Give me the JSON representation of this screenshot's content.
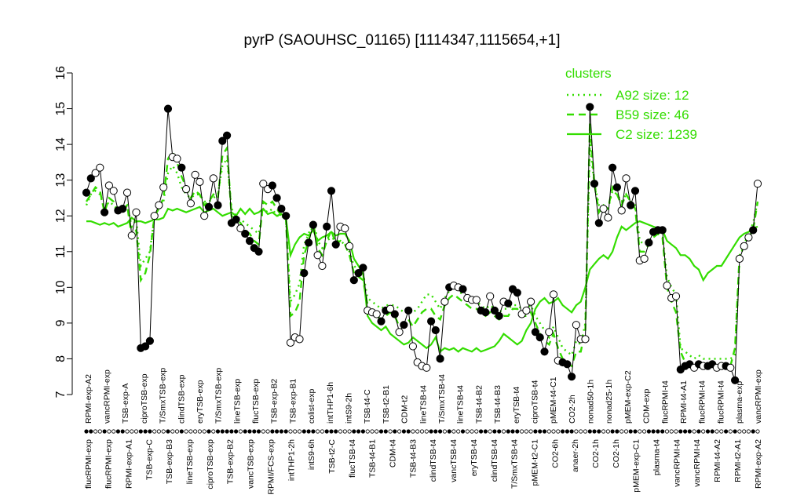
{
  "chart_data": {
    "type": "line",
    "title": "pyrP (SAOUHSC_01165) [1114347,1115654,+1]",
    "xlabel": "",
    "ylabel": "",
    "ylim": [
      7,
      16
    ],
    "yticks": [
      7,
      8,
      9,
      10,
      11,
      12,
      13,
      14,
      15,
      16
    ],
    "grid": false,
    "legend": {
      "title": "clusters",
      "placement": "top-right",
      "color": "#33dd00",
      "entries": [
        {
          "label": "A92 size: 12",
          "dash": "dotted"
        },
        {
          "label": "B59 size: 46",
          "dash": "dashed"
        },
        {
          "label": "C2 size: 1239",
          "dash": "solid"
        }
      ]
    },
    "labels_upper": [
      "RPMI-exp-A2",
      "vancRPMI-exp",
      "TSB-exp-A",
      "ciproTSB-exp",
      "T/SmxTSB-exp",
      "clindTSB-exp",
      "eryTSB-exp",
      "T/SmxTSB-exp",
      "lineTSB-exp",
      "flucTSB-exp",
      "TSB-exp-B2",
      "TSB-exp-B1",
      "colist-exp",
      "intTHP1-6h",
      "intS9-2h",
      "TSB-t4-C",
      "TSB-t2-B1",
      "CDM-t2",
      "lineTSB-t4",
      "T/SmxTSB-t4",
      "lineTSB-t4",
      "TSB-t4-B2",
      "TSB-t4-B3",
      "eryTSB-t4",
      "ciproTSB-t4",
      "pMEM-t4-C1",
      "CO2-2h",
      "nonad50-1h",
      "nonad25-1h",
      "pMEM-exp-C2",
      "CDM-exp",
      "flucRPMI-t4",
      "RPMI-t4-A1",
      "flucRPMI-t4",
      "flucRPMI-t4",
      "plasma-exp",
      "vancRPMI-exp"
    ],
    "labels_lower": [
      "flucRPMI-exp",
      "flucRPMI-exp",
      "RPMI-exp-A1",
      "TSB-exp-C",
      "TSB-exp-B3",
      "lineTSB-exp",
      "ciproTSB-exp",
      "TSB-exp-B2",
      "vancTSB-exp",
      "RPMI/FCS-exp",
      "intTHP1-2h",
      "intS9-6h",
      "TSB-t2-C",
      "flucTSB-t4",
      "TSB-t4-B1",
      "CDM-t4",
      "TSB-t4-B3",
      "clindTSB-t4",
      "vancTSB-t4",
      "eryTSB-t4",
      "clindTSB-t4",
      "T/SmxTSB-t4",
      "pMEM-t2-C1",
      "CO2-6h",
      "anaer-2h",
      "CO2-1h",
      "CO2-1h",
      "pMEM-exp-C1",
      "plasma-t4",
      "vancRPMI-t4",
      "vancRPMI-t4",
      "RPMI-t4-A2",
      "RPMI-t2-A1",
      "RPMI-exp-A2"
    ],
    "series": [
      {
        "name": "pyrP",
        "values": [
          12.65,
          13.05,
          13.2,
          13.35,
          12.1,
          12.85,
          12.7,
          12.15,
          12.2,
          12.65,
          11.45,
          12.1,
          8.3,
          8.35,
          8.5,
          12.0,
          12.3,
          12.8,
          15.0,
          13.65,
          13.6,
          13.35,
          12.75,
          12.35,
          13.15,
          12.95,
          12.0,
          12.25,
          13.05,
          12.3,
          14.1,
          14.25,
          11.8,
          11.9,
          11.65,
          11.5,
          11.3,
          11.1,
          11.0,
          12.9,
          12.75,
          12.85,
          12.5,
          12.2,
          12.0,
          8.45,
          8.6,
          8.55,
          10.4,
          11.25,
          11.75,
          10.9,
          10.6,
          11.7,
          12.7,
          11.2,
          11.7,
          11.65,
          11.15,
          10.2,
          10.4,
          10.55,
          9.35,
          9.3,
          9.25,
          9.05,
          9.35,
          9.4,
          9.25,
          8.75,
          8.95,
          9.35,
          8.35,
          7.9,
          7.8,
          7.75,
          9.05,
          8.8,
          8.0,
          9.6,
          10.0,
          10.05,
          10.0,
          9.95,
          9.7,
          9.65,
          9.65,
          9.35,
          9.3,
          9.75,
          9.35,
          9.2,
          9.6,
          9.55,
          9.95,
          9.85,
          9.25,
          9.35,
          9.6,
          8.75,
          8.6,
          8.2,
          8.75,
          9.8,
          7.95,
          7.9,
          7.85,
          7.5,
          8.95,
          8.55,
          8.55,
          15.05,
          12.9,
          11.8,
          12.2,
          11.95,
          13.35,
          12.8,
          12.15,
          13.05,
          12.3,
          12.7,
          10.75,
          10.8,
          11.25,
          11.55,
          11.6,
          11.6,
          10.05,
          9.7,
          9.75,
          7.7,
          7.8,
          7.85,
          7.75,
          7.85,
          7.8,
          7.8,
          7.85,
          7.75,
          7.8,
          7.8,
          7.75,
          7.4,
          10.8,
          11.15,
          11.4,
          11.6,
          12.9
        ],
        "filled": [
          1,
          1,
          0,
          0,
          1,
          0,
          0,
          1,
          1,
          0,
          0,
          0,
          1,
          1,
          1,
          0,
          0,
          0,
          1,
          0,
          0,
          1,
          0,
          0,
          0,
          0,
          0,
          1,
          0,
          1,
          1,
          1,
          1,
          1,
          0,
          1,
          1,
          1,
          1,
          0,
          0,
          1,
          1,
          1,
          1,
          0,
          0,
          0,
          1,
          1,
          1,
          0,
          0,
          1,
          1,
          1,
          0,
          0,
          0,
          1,
          1,
          1,
          0,
          0,
          0,
          1,
          1,
          0,
          1,
          0,
          1,
          1,
          0,
          0,
          0,
          0,
          1,
          1,
          1,
          0,
          1,
          0,
          0,
          1,
          0,
          0,
          0,
          1,
          1,
          0,
          1,
          1,
          0,
          1,
          1,
          1,
          0,
          0,
          0,
          1,
          1,
          1,
          0,
          0,
          0,
          1,
          1,
          1,
          0,
          0,
          0,
          1,
          1,
          1,
          0,
          0,
          1,
          1,
          0,
          0,
          1,
          1,
          0,
          0,
          1,
          1,
          1,
          1,
          0,
          0,
          0,
          1,
          1,
          1,
          0,
          1,
          0,
          1,
          1,
          0,
          0,
          1,
          0,
          1,
          0,
          0,
          0,
          1,
          0
        ]
      },
      {
        "name": "A92 size: 12",
        "style": "dotted",
        "values": [
          12.3,
          12.6,
          12.7,
          12.6,
          12.2,
          12.4,
          12.3,
          12.1,
          12.2,
          12.3,
          11.7,
          11.9,
          10.6,
          10.8,
          11.0,
          12.0,
          12.2,
          12.4,
          13.2,
          13.4,
          13.2,
          12.8,
          12.6,
          12.5,
          12.6,
          12.6,
          12.4,
          12.4,
          12.5,
          12.6,
          13.4,
          13.6,
          12.2,
          12.0,
          11.9,
          11.8,
          11.7,
          11.6,
          11.5,
          12.2,
          12.1,
          12.2,
          12.0,
          12.0,
          11.9,
          9.6,
          9.8,
          10.1,
          11.2,
          11.5,
          11.9,
          11.3,
          11.1,
          11.3,
          11.4,
          11.3,
          11.3,
          11.2,
          11.0,
          10.6,
          10.5,
          10.4,
          9.7,
          9.6,
          9.5,
          9.4,
          9.5,
          9.5,
          9.5,
          9.4,
          9.3,
          9.4,
          9.3,
          9.4,
          9.6,
          9.8,
          9.8,
          9.6,
          9.4,
          9.7,
          9.9,
          10.0,
          9.9,
          9.8,
          9.7,
          9.6,
          9.6,
          9.5,
          9.4,
          9.5,
          9.4,
          9.3,
          9.4,
          9.4,
          9.5,
          9.5,
          9.4,
          9.4,
          9.5,
          9.2,
          9.0,
          8.8,
          8.6,
          8.9,
          8.6,
          8.3,
          8.2,
          8.1,
          8.5,
          8.4,
          9.0,
          14.0,
          12.9,
          12.3,
          12.3,
          12.2,
          12.7,
          12.6,
          12.4,
          12.6,
          12.4,
          12.3,
          11.3,
          11.2,
          11.3,
          11.5,
          11.6,
          11.5,
          10.3,
          10.0,
          9.8,
          8.3,
          8.2,
          8.1,
          8.0,
          8.1,
          8.0,
          8.0,
          8.0,
          8.0,
          8.0,
          8.0,
          8.0,
          8.1,
          10.8,
          11.2,
          11.5,
          11.8,
          12.4
        ]
      },
      {
        "name": "B59 size: 46",
        "style": "dashed",
        "values": [
          12.4,
          12.6,
          12.8,
          12.7,
          12.1,
          12.5,
          12.4,
          12.1,
          12.1,
          12.3,
          11.4,
          11.6,
          10.2,
          10.4,
          10.9,
          12.0,
          12.2,
          12.5,
          13.6,
          13.8,
          13.5,
          13.1,
          12.8,
          12.5,
          12.7,
          12.6,
          12.3,
          12.4,
          12.6,
          12.5,
          13.7,
          13.9,
          12.0,
          11.9,
          11.8,
          11.6,
          11.5,
          11.3,
          11.2,
          12.4,
          12.3,
          12.4,
          12.2,
          12.0,
          11.9,
          9.2,
          9.3,
          9.6,
          10.9,
          11.3,
          11.8,
          11.1,
          10.9,
          11.3,
          11.6,
          11.2,
          11.3,
          11.2,
          10.9,
          10.4,
          10.3,
          10.2,
          9.5,
          9.3,
          9.2,
          9.1,
          9.2,
          9.3,
          9.2,
          8.9,
          8.9,
          9.1,
          8.9,
          9.1,
          9.3,
          9.4,
          9.4,
          9.2,
          9.1,
          9.5,
          9.7,
          9.8,
          9.7,
          9.6,
          9.5,
          9.4,
          9.4,
          9.3,
          9.2,
          9.3,
          9.2,
          9.1,
          9.2,
          9.2,
          9.4,
          9.4,
          9.2,
          9.2,
          9.3,
          9.0,
          8.7,
          8.5,
          8.4,
          8.7,
          8.3,
          8.0,
          7.9,
          7.8,
          8.2,
          8.2,
          8.8,
          14.6,
          12.9,
          12.1,
          12.3,
          12.2,
          12.8,
          12.6,
          12.3,
          12.6,
          12.4,
          12.2,
          11.0,
          11.0,
          11.2,
          11.4,
          11.5,
          11.4,
          10.0,
          9.6,
          9.3,
          8.2,
          7.9,
          7.8,
          7.8,
          7.9,
          7.8,
          7.8,
          7.8,
          7.8,
          7.8,
          7.8,
          7.8,
          8.3,
          10.9,
          11.2,
          11.4,
          11.6,
          12.4
        ]
      },
      {
        "name": "C2 size: 1239",
        "style": "solid",
        "values": [
          11.85,
          11.85,
          11.8,
          11.75,
          11.8,
          11.75,
          11.8,
          11.7,
          11.75,
          11.8,
          11.95,
          11.85,
          11.85,
          11.8,
          11.85,
          11.9,
          11.9,
          11.95,
          12.2,
          12.15,
          12.2,
          12.15,
          12.1,
          12.15,
          12.2,
          12.25,
          12.1,
          12.15,
          12.2,
          12.1,
          12.0,
          12.05,
          12.1,
          12.0,
          12.2,
          12.05,
          12.2,
          12.05,
          12.1,
          12.2,
          12.05,
          12.1,
          12.0,
          12.05,
          11.95,
          10.9,
          11.2,
          11.4,
          11.5,
          11.45,
          11.6,
          11.3,
          11.4,
          11.45,
          11.55,
          11.45,
          11.5,
          11.5,
          11.3,
          10.8,
          10.6,
          10.4,
          9.2,
          9.0,
          8.9,
          8.8,
          8.9,
          8.7,
          8.6,
          8.5,
          8.4,
          8.45,
          8.6,
          8.5,
          8.4,
          8.3,
          8.4,
          8.6,
          8.2,
          8.3,
          8.25,
          8.3,
          8.2,
          8.3,
          8.25,
          8.2,
          8.3,
          8.2,
          8.25,
          8.3,
          8.35,
          8.5,
          8.7,
          8.6,
          8.5,
          8.4,
          8.5,
          8.8,
          9.0,
          9.4,
          9.6,
          9.7,
          9.55,
          9.6,
          9.7,
          9.5,
          9.4,
          9.3,
          9.5,
          9.6,
          10.0,
          10.5,
          10.65,
          10.8,
          10.9,
          10.8,
          11.0,
          11.4,
          11.7,
          11.6,
          11.7,
          11.8,
          11.85,
          11.8,
          11.75,
          11.7,
          11.65,
          11.6,
          11.3,
          11.2,
          11.1,
          10.9,
          10.9,
          10.8,
          10.6,
          10.5,
          10.2,
          10.4,
          10.5,
          10.6,
          10.6,
          10.8,
          11.0,
          11.2,
          11.4,
          11.5,
          11.55,
          11.65,
          11.7
        ]
      }
    ]
  }
}
